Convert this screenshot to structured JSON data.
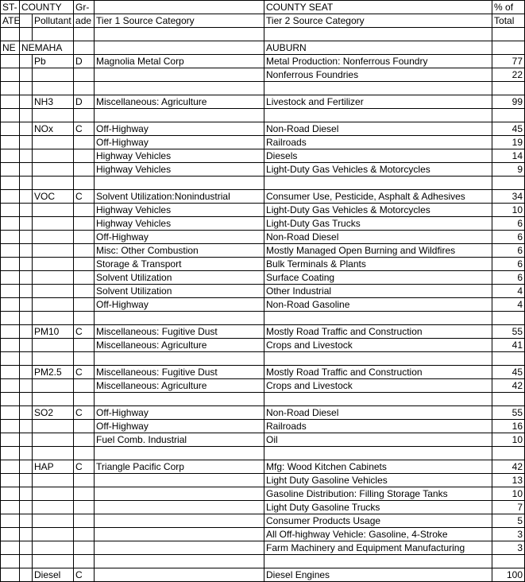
{
  "header": {
    "state_line1": "ST-",
    "state_line2": "ATE",
    "county": "COUNTY",
    "grade_line1": "Gr-",
    "grade_line2": "ade",
    "pollutant": "Pollutant",
    "county_seat": "COUNTY SEAT",
    "tier1": "Tier 1 Source Category",
    "tier2": "Tier 2 Source Category",
    "pct_line1": "% of",
    "pct_line2": "Total"
  },
  "county_row": {
    "state": "NE",
    "county_name": "NEMAHA",
    "seat": "AUBURN"
  },
  "rows": [
    {
      "state": "",
      "sp1": "",
      "poll": "Pb",
      "grade": "D",
      "t1": "Magnolia Metal Corp",
      "t2": "Metal Production: Nonferrous Foundry",
      "pct": "77"
    },
    {
      "state": "",
      "sp1": "",
      "poll": "",
      "grade": "",
      "t1": "",
      "t2": "Nonferrous Foundries",
      "pct": "22"
    },
    {
      "state": "",
      "sp1": "",
      "poll": "",
      "grade": "",
      "t1": "",
      "t2": "",
      "pct": ""
    },
    {
      "state": "",
      "sp1": "",
      "poll": "NH3",
      "grade": "D",
      "t1": "Miscellaneous: Agriculture",
      "t2": "Livestock and Fertilizer",
      "pct": "99"
    },
    {
      "state": "",
      "sp1": "",
      "poll": "",
      "grade": "",
      "t1": "",
      "t2": "",
      "pct": ""
    },
    {
      "state": "",
      "sp1": "",
      "poll": "NOx",
      "grade": "C",
      "t1": "Off-Highway",
      "t2": "Non-Road Diesel",
      "pct": "45"
    },
    {
      "state": "",
      "sp1": "",
      "poll": "",
      "grade": "",
      "t1": "Off-Highway",
      "t2": "Railroads",
      "pct": "19"
    },
    {
      "state": "",
      "sp1": "",
      "poll": "",
      "grade": "",
      "t1": "Highway Vehicles",
      "t2": "Diesels",
      "pct": "14"
    },
    {
      "state": "",
      "sp1": "",
      "poll": "",
      "grade": "",
      "t1": "Highway Vehicles",
      "t2": "Light-Duty Gas Vehicles & Motorcycles",
      "pct": "9"
    },
    {
      "state": "",
      "sp1": "",
      "poll": "",
      "grade": "",
      "t1": "",
      "t2": "",
      "pct": ""
    },
    {
      "state": "",
      "sp1": "",
      "poll": "VOC",
      "grade": "C",
      "t1": "Solvent Utilization:Nonindustrial",
      "t2": "Consumer Use, Pesticide, Asphalt & Adhesives",
      "pct": "34"
    },
    {
      "state": "",
      "sp1": "",
      "poll": "",
      "grade": "",
      "t1": "Highway Vehicles",
      "t2": "Light-Duty Gas Vehicles & Motorcycles",
      "pct": "10"
    },
    {
      "state": "",
      "sp1": "",
      "poll": "",
      "grade": "",
      "t1": "Highway Vehicles",
      "t2": "Light-Duty Gas Trucks",
      "pct": "6"
    },
    {
      "state": "",
      "sp1": "",
      "poll": "",
      "grade": "",
      "t1": "Off-Highway",
      "t2": "Non-Road Diesel",
      "pct": "6"
    },
    {
      "state": "",
      "sp1": "",
      "poll": "",
      "grade": "",
      "t1": "Misc: Other Combustion",
      "t2": "Mostly Managed Open Burning and Wildfires",
      "pct": "6"
    },
    {
      "state": "",
      "sp1": "",
      "poll": "",
      "grade": "",
      "t1": "Storage & Transport",
      "t2": "Bulk Terminals & Plants",
      "pct": "6"
    },
    {
      "state": "",
      "sp1": "",
      "poll": "",
      "grade": "",
      "t1": "Solvent Utilization",
      "t2": "Surface Coating",
      "pct": "6"
    },
    {
      "state": "",
      "sp1": "",
      "poll": "",
      "grade": "",
      "t1": "Solvent Utilization",
      "t2": "Other Industrial",
      "pct": "4"
    },
    {
      "state": "",
      "sp1": "",
      "poll": "",
      "grade": "",
      "t1": "Off-Highway",
      "t2": "Non-Road Gasoline",
      "pct": "4"
    },
    {
      "state": "",
      "sp1": "",
      "poll": "",
      "grade": "",
      "t1": "",
      "t2": "",
      "pct": ""
    },
    {
      "state": "",
      "sp1": "",
      "poll": "PM10",
      "grade": "C",
      "t1": "Miscellaneous: Fugitive Dust",
      "t2": "Mostly Road Traffic and Construction",
      "pct": "55"
    },
    {
      "state": "",
      "sp1": "",
      "poll": "",
      "grade": "",
      "t1": "Miscellaneous: Agriculture",
      "t2": "Crops and Livestock",
      "pct": "41"
    },
    {
      "state": "",
      "sp1": "",
      "poll": "",
      "grade": "",
      "t1": "",
      "t2": "",
      "pct": ""
    },
    {
      "state": "",
      "sp1": "",
      "poll": "PM2.5",
      "grade": "C",
      "t1": "Miscellaneous: Fugitive Dust",
      "t2": "Mostly Road Traffic and Construction",
      "pct": "45"
    },
    {
      "state": "",
      "sp1": "",
      "poll": "",
      "grade": "",
      "t1": "Miscellaneous: Agriculture",
      "t2": "Crops and Livestock",
      "pct": "42"
    },
    {
      "state": "",
      "sp1": "",
      "poll": "",
      "grade": "",
      "t1": "",
      "t2": "",
      "pct": ""
    },
    {
      "state": "",
      "sp1": "",
      "poll": "SO2",
      "grade": "C",
      "t1": "Off-Highway",
      "t2": "Non-Road Diesel",
      "pct": "55"
    },
    {
      "state": "",
      "sp1": "",
      "poll": "",
      "grade": "",
      "t1": "Off-Highway",
      "t2": "Railroads",
      "pct": "16"
    },
    {
      "state": "",
      "sp1": "",
      "poll": "",
      "grade": "",
      "t1": "Fuel Comb. Industrial",
      "t2": "Oil",
      "pct": "10"
    },
    {
      "state": "",
      "sp1": "",
      "poll": "",
      "grade": "",
      "t1": "",
      "t2": "",
      "pct": ""
    },
    {
      "state": "",
      "sp1": "",
      "poll": "HAP",
      "grade": "C",
      "t1": "Triangle Pacific Corp",
      "t2": "Mfg: Wood Kitchen Cabinets",
      "pct": "42"
    },
    {
      "state": "",
      "sp1": "",
      "poll": "",
      "grade": "",
      "t1": "",
      "t2": "Light Duty Gasoline Vehicles",
      "pct": "13"
    },
    {
      "state": "",
      "sp1": "",
      "poll": "",
      "grade": "",
      "t1": "",
      "t2": "Gasoline Distribution: Filling Storage Tanks",
      "pct": "10"
    },
    {
      "state": "",
      "sp1": "",
      "poll": "",
      "grade": "",
      "t1": "",
      "t2": "Light Duty Gasoline Trucks",
      "pct": "7"
    },
    {
      "state": "",
      "sp1": "",
      "poll": "",
      "grade": "",
      "t1": "",
      "t2": "Consumer Products Usage",
      "pct": "5"
    },
    {
      "state": "",
      "sp1": "",
      "poll": "",
      "grade": "",
      "t1": "",
      "t2": "All Off-highway Vehicle: Gasoline, 4-Stroke",
      "pct": "3"
    },
    {
      "state": "",
      "sp1": "",
      "poll": "",
      "grade": "",
      "t1": "",
      "t2": "Farm Machinery and Equipment Manufacturing",
      "pct": "3"
    },
    {
      "state": "",
      "sp1": "",
      "poll": "",
      "grade": "",
      "t1": "",
      "t2": "",
      "pct": ""
    },
    {
      "state": "",
      "sp1": "",
      "poll": "Diesel",
      "grade": "C",
      "t1": "",
      "t2": "Diesel Engines",
      "pct": "100"
    }
  ]
}
